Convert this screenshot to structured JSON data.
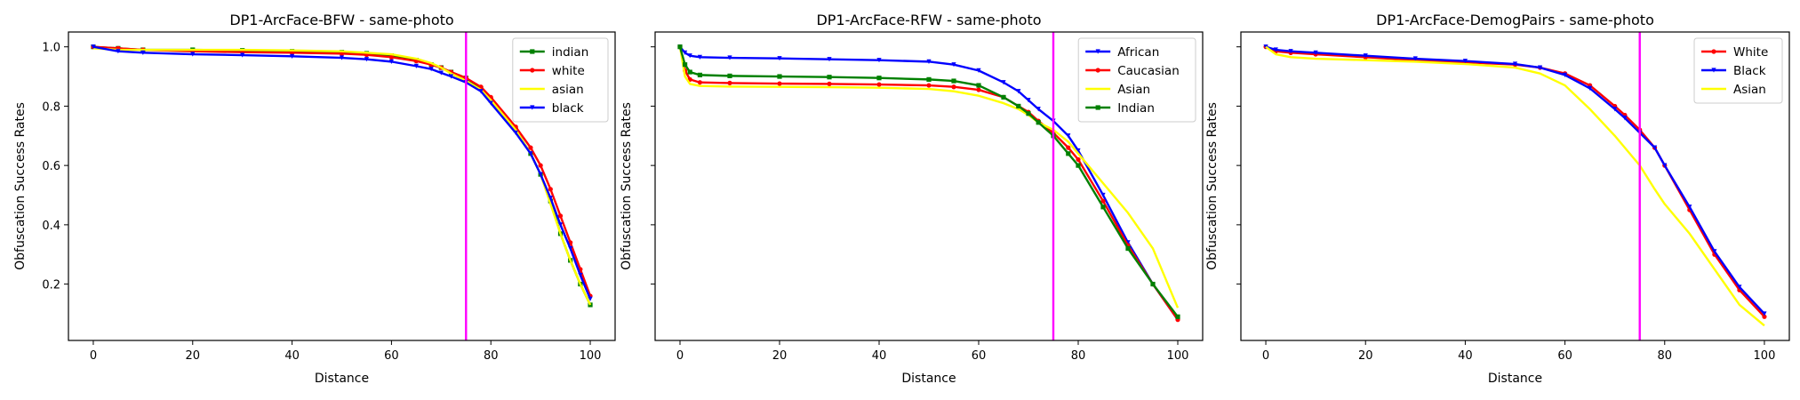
{
  "chart_data": [
    {
      "type": "line",
      "title": "DP1-ArcFace-BFW - same-photo",
      "xlabel": "Distance",
      "ylabel": "Obfuscation Success Rates",
      "xlim": [
        -5,
        105
      ],
      "ylim": [
        0.01,
        1.05
      ],
      "xticks": [
        "0",
        "20",
        "40",
        "60",
        "80",
        "100"
      ],
      "yticks": [
        "0.2",
        "0.4",
        "0.6",
        "0.8",
        "1.0"
      ],
      "show_ytick_labels": true,
      "threshold_x": 75,
      "threshold_color": "#ff00ff",
      "legend_position": "upper right",
      "series": [
        {
          "name": "indian",
          "color": "#008000",
          "marker": "square",
          "x": [
            0,
            5,
            10,
            20,
            30,
            40,
            50,
            55,
            60,
            65,
            68,
            70,
            72,
            75,
            78,
            80,
            85,
            88,
            90,
            92,
            94,
            96,
            98,
            100
          ],
          "y": [
            1.0,
            0.995,
            0.99,
            0.99,
            0.988,
            0.985,
            0.982,
            0.978,
            0.97,
            0.955,
            0.94,
            0.93,
            0.915,
            0.895,
            0.86,
            0.82,
            0.72,
            0.64,
            0.57,
            0.48,
            0.37,
            0.28,
            0.2,
            0.13
          ]
        },
        {
          "name": "white",
          "color": "#ff0000",
          "marker": "circle",
          "x": [
            0,
            5,
            10,
            20,
            30,
            40,
            50,
            55,
            60,
            65,
            68,
            70,
            72,
            75,
            78,
            80,
            85,
            88,
            90,
            92,
            94,
            96,
            98,
            100
          ],
          "y": [
            1.0,
            0.995,
            0.99,
            0.985,
            0.982,
            0.98,
            0.977,
            0.973,
            0.965,
            0.952,
            0.94,
            0.93,
            0.915,
            0.895,
            0.865,
            0.83,
            0.73,
            0.66,
            0.6,
            0.52,
            0.43,
            0.34,
            0.25,
            0.16
          ]
        },
        {
          "name": "asian",
          "color": "#ffff00",
          "marker": "none",
          "x": [
            0,
            5,
            10,
            20,
            30,
            40,
            50,
            55,
            60,
            65,
            68,
            70,
            72,
            75,
            78,
            80,
            85,
            88,
            90,
            92,
            94,
            96,
            98,
            100
          ],
          "y": [
            0.995,
            0.99,
            0.99,
            0.99,
            0.99,
            0.988,
            0.985,
            0.98,
            0.975,
            0.96,
            0.945,
            0.93,
            0.91,
            0.885,
            0.855,
            0.82,
            0.72,
            0.64,
            0.57,
            0.47,
            0.37,
            0.28,
            0.2,
            0.13
          ]
        },
        {
          "name": "black",
          "color": "#0000ff",
          "marker": "triangle",
          "x": [
            0,
            5,
            10,
            20,
            30,
            40,
            50,
            55,
            60,
            65,
            68,
            70,
            72,
            75,
            78,
            80,
            85,
            88,
            90,
            92,
            94,
            96,
            98,
            100
          ],
          "y": [
            1.0,
            0.985,
            0.98,
            0.975,
            0.972,
            0.968,
            0.963,
            0.958,
            0.95,
            0.935,
            0.925,
            0.912,
            0.9,
            0.88,
            0.85,
            0.81,
            0.71,
            0.64,
            0.57,
            0.49,
            0.4,
            0.32,
            0.23,
            0.15
          ]
        }
      ]
    },
    {
      "type": "line",
      "title": "DP1-ArcFace-RFW - same-photo",
      "xlabel": "Distance",
      "ylabel": "Obfuscation Success Rates",
      "xlim": [
        -5,
        105
      ],
      "ylim": [
        0.01,
        1.05
      ],
      "xticks": [
        "0",
        "20",
        "40",
        "60",
        "80",
        "100"
      ],
      "yticks": [
        "0.2",
        "0.4",
        "0.6",
        "0.8",
        "1.0"
      ],
      "show_ytick_labels": false,
      "threshold_x": 75,
      "threshold_color": "#ff00ff",
      "legend_position": "upper right",
      "series": [
        {
          "name": "African",
          "color": "#0000ff",
          "marker": "triangle",
          "x": [
            0,
            1,
            2,
            4,
            10,
            20,
            30,
            40,
            50,
            55,
            60,
            65,
            68,
            70,
            72,
            75,
            78,
            80,
            85,
            90,
            95,
            100
          ],
          "y": [
            1.0,
            0.98,
            0.97,
            0.965,
            0.963,
            0.961,
            0.958,
            0.955,
            0.95,
            0.94,
            0.92,
            0.88,
            0.85,
            0.82,
            0.79,
            0.75,
            0.7,
            0.65,
            0.5,
            0.34,
            0.2,
            0.08
          ]
        },
        {
          "name": "Caucasian",
          "color": "#ff0000",
          "marker": "circle",
          "x": [
            0,
            1,
            2,
            4,
            10,
            20,
            30,
            40,
            50,
            55,
            60,
            65,
            68,
            70,
            72,
            75,
            78,
            80,
            85,
            90,
            95,
            100
          ],
          "y": [
            1.0,
            0.92,
            0.89,
            0.88,
            0.878,
            0.876,
            0.875,
            0.873,
            0.87,
            0.865,
            0.855,
            0.83,
            0.8,
            0.78,
            0.75,
            0.71,
            0.66,
            0.62,
            0.48,
            0.33,
            0.2,
            0.08
          ]
        },
        {
          "name": "Asian",
          "color": "#ffff00",
          "marker": "none",
          "x": [
            0,
            1,
            2,
            4,
            10,
            20,
            30,
            40,
            50,
            55,
            60,
            65,
            68,
            70,
            72,
            75,
            78,
            80,
            85,
            90,
            95,
            100
          ],
          "y": [
            1.0,
            0.9,
            0.875,
            0.868,
            0.866,
            0.865,
            0.864,
            0.862,
            0.858,
            0.85,
            0.835,
            0.81,
            0.79,
            0.77,
            0.745,
            0.72,
            0.68,
            0.64,
            0.54,
            0.44,
            0.32,
            0.12
          ]
        },
        {
          "name": "Indian",
          "color": "#008000",
          "marker": "square",
          "x": [
            0,
            1,
            2,
            4,
            10,
            20,
            30,
            40,
            50,
            55,
            60,
            65,
            68,
            70,
            72,
            75,
            78,
            80,
            85,
            90,
            95,
            100
          ],
          "y": [
            1.0,
            0.94,
            0.915,
            0.905,
            0.902,
            0.9,
            0.898,
            0.895,
            0.89,
            0.885,
            0.87,
            0.83,
            0.8,
            0.775,
            0.745,
            0.7,
            0.64,
            0.6,
            0.46,
            0.32,
            0.2,
            0.09
          ]
        }
      ]
    },
    {
      "type": "line",
      "title": "DP1-ArcFace-DemogPairs - same-photo",
      "xlabel": "Distance",
      "ylabel": "Obfuscation Success Rates",
      "xlim": [
        -5,
        105
      ],
      "ylim": [
        0.01,
        1.05
      ],
      "xticks": [
        "0",
        "20",
        "40",
        "60",
        "80",
        "100"
      ],
      "yticks": [
        "0.2",
        "0.4",
        "0.6",
        "0.8",
        "1.0"
      ],
      "show_ytick_labels": false,
      "threshold_x": 75,
      "threshold_color": "#ff00ff",
      "legend_position": "upper right",
      "series": [
        {
          "name": "White",
          "color": "#ff0000",
          "marker": "circle",
          "x": [
            0,
            2,
            5,
            10,
            20,
            30,
            40,
            50,
            55,
            60,
            65,
            70,
            72,
            75,
            78,
            80,
            85,
            90,
            95,
            100
          ],
          "y": [
            1.0,
            0.985,
            0.98,
            0.975,
            0.965,
            0.955,
            0.948,
            0.94,
            0.93,
            0.91,
            0.87,
            0.8,
            0.77,
            0.72,
            0.66,
            0.6,
            0.45,
            0.3,
            0.18,
            0.09
          ]
        },
        {
          "name": "Black",
          "color": "#0000ff",
          "marker": "triangle",
          "x": [
            0,
            2,
            5,
            10,
            20,
            30,
            40,
            50,
            55,
            60,
            65,
            70,
            72,
            75,
            78,
            80,
            85,
            90,
            95,
            100
          ],
          "y": [
            1.0,
            0.99,
            0.985,
            0.98,
            0.97,
            0.96,
            0.952,
            0.942,
            0.93,
            0.905,
            0.86,
            0.79,
            0.76,
            0.71,
            0.66,
            0.6,
            0.46,
            0.31,
            0.19,
            0.1
          ]
        },
        {
          "name": "Asian",
          "color": "#ffff00",
          "marker": "none",
          "x": [
            0,
            2,
            5,
            10,
            20,
            30,
            40,
            50,
            55,
            60,
            65,
            70,
            72,
            75,
            78,
            80,
            85,
            90,
            95,
            100
          ],
          "y": [
            1.0,
            0.975,
            0.965,
            0.96,
            0.955,
            0.95,
            0.942,
            0.93,
            0.91,
            0.87,
            0.79,
            0.7,
            0.66,
            0.6,
            0.52,
            0.47,
            0.37,
            0.25,
            0.13,
            0.06
          ]
        }
      ]
    }
  ]
}
